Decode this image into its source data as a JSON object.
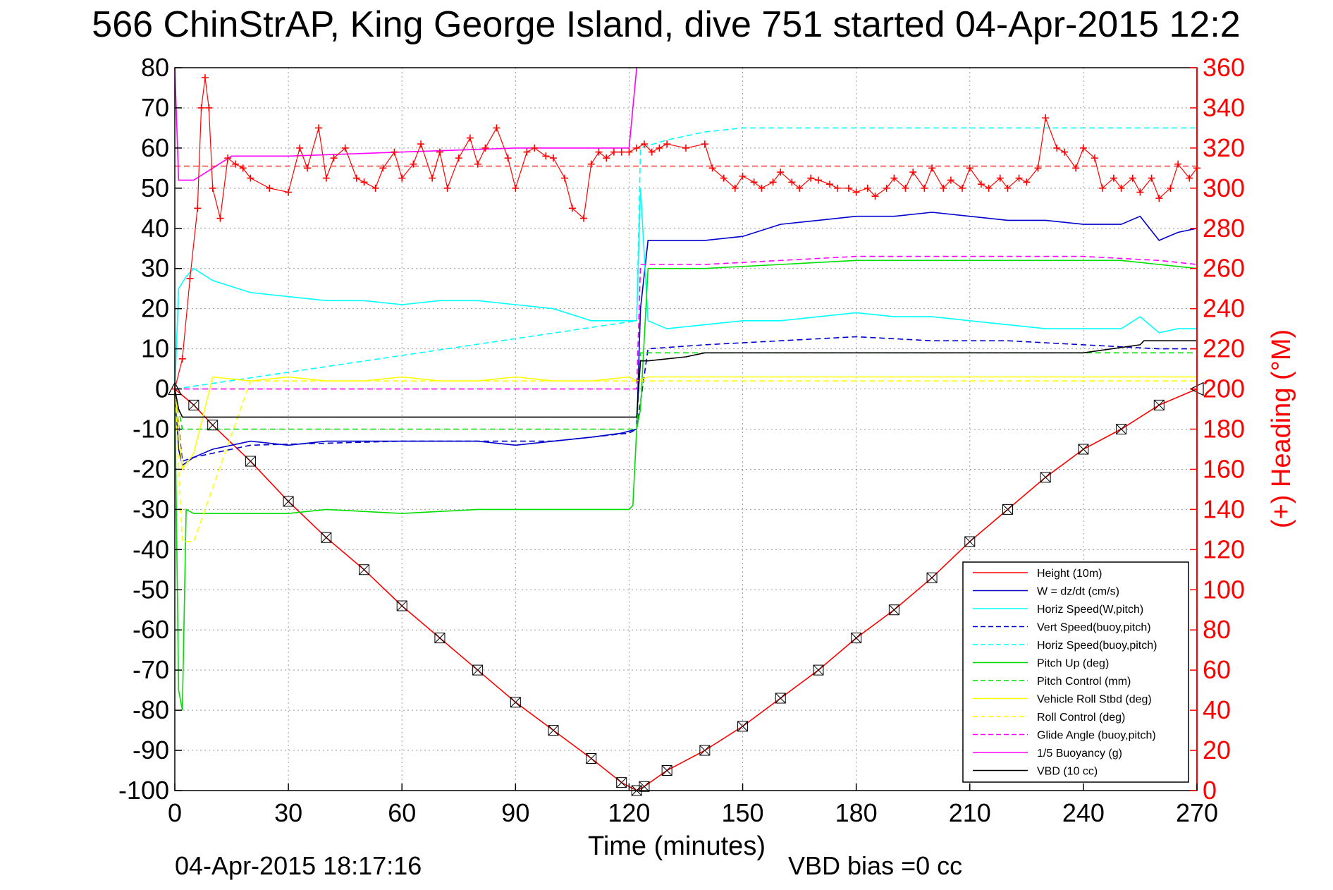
{
  "chart_data": {
    "type": "line",
    "title": "566 ChinStrAP, King George Island, dive 751 started 04-Apr-2015 12:2",
    "xlabel": "Time (minutes)",
    "ylabel_right": "(+) Heading (°M)",
    "xlim": [
      0,
      270
    ],
    "ylim": [
      -100,
      80
    ],
    "ylim_right": [
      0,
      360
    ],
    "x_ticks": [
      "0",
      "30",
      "60",
      "90",
      "120",
      "150",
      "180",
      "210",
      "240",
      "270"
    ],
    "y_ticks": [
      "80",
      "70",
      "60",
      "50",
      "40",
      "30",
      "20",
      "10",
      "0",
      "-10",
      "-20",
      "-30",
      "-40",
      "-50",
      "-60",
      "-70",
      "-80",
      "-90",
      "-100"
    ],
    "y_ticks_right": [
      "360",
      "340",
      "320",
      "300",
      "280",
      "260",
      "240",
      "220",
      "200",
      "180",
      "160",
      "140",
      "120",
      "100",
      "80",
      "60",
      "40",
      "20",
      "0"
    ],
    "grid": true,
    "legend_position": "bottom-right",
    "footer_date": "04-Apr-2015 18:17:16",
    "footer_bias": "VBD bias =0 cc",
    "colors": {
      "red": "#ff0000",
      "blue": "#0000cc",
      "cyan": "#00ffff",
      "green": "#00dd00",
      "yellow": "#ffff00",
      "magenta": "#ff00ff",
      "black": "#000000"
    },
    "series": [
      {
        "name": "Height (10m)",
        "color": "#ff0000",
        "dash": false,
        "x": [
          0,
          5,
          10,
          20,
          30,
          40,
          50,
          60,
          70,
          80,
          90,
          100,
          110,
          118,
          122,
          124,
          130,
          140,
          150,
          160,
          170,
          180,
          190,
          200,
          210,
          220,
          230,
          240,
          250,
          260,
          270
        ],
        "y": [
          0,
          -4,
          -9,
          -18,
          -28,
          -37,
          -45,
          -54,
          -62,
          -70,
          -78,
          -85,
          -92,
          -98,
          -100,
          -99,
          -95,
          -90,
          -84,
          -77,
          -70,
          -62,
          -55,
          -47,
          -38,
          -30,
          -22,
          -15,
          -10,
          -4,
          0
        ]
      },
      {
        "name": "W = dz/dt (cm/s)",
        "color": "#0000cc",
        "dash": false,
        "x": [
          0,
          1,
          2,
          5,
          10,
          20,
          30,
          40,
          50,
          60,
          70,
          80,
          90,
          100,
          110,
          118,
          122,
          123,
          125,
          130,
          140,
          150,
          160,
          170,
          180,
          190,
          200,
          210,
          220,
          230,
          240,
          250,
          255,
          260,
          265,
          270
        ],
        "y": [
          0,
          -15,
          -19,
          -17,
          -15,
          -13,
          -14,
          -13,
          -13,
          -13,
          -13,
          -13,
          -14,
          -13,
          -12,
          -11,
          -10,
          20,
          37,
          37,
          37,
          38,
          41,
          42,
          43,
          43,
          44,
          43,
          42,
          42,
          41,
          41,
          43,
          37,
          39,
          40
        ]
      },
      {
        "name": "Horiz Speed(W,pitch)",
        "color": "#00ffff",
        "dash": false,
        "x": [
          0,
          1,
          3,
          5,
          10,
          20,
          30,
          40,
          50,
          60,
          70,
          80,
          90,
          100,
          110,
          118,
          122,
          123,
          125,
          130,
          140,
          150,
          160,
          170,
          180,
          190,
          200,
          210,
          220,
          230,
          240,
          250,
          255,
          260,
          265,
          270
        ],
        "y": [
          0,
          25,
          28,
          30,
          27,
          24,
          23,
          22,
          22,
          21,
          22,
          22,
          21,
          20,
          17,
          17,
          17,
          50,
          17,
          15,
          16,
          17,
          17,
          18,
          19,
          18,
          18,
          17,
          16,
          15,
          15,
          15,
          18,
          14,
          15,
          15
        ]
      },
      {
        "name": "Vert Speed(buoy,pitch)",
        "color": "#0000cc",
        "dash": true,
        "x": [
          0,
          2,
          5,
          20,
          60,
          100,
          120,
          122,
          125,
          140,
          160,
          180,
          200,
          220,
          240,
          260,
          270
        ],
        "y": [
          0,
          -18,
          -17,
          -14,
          -13,
          -13,
          -11,
          -10,
          10,
          11,
          12,
          13,
          12,
          12,
          11,
          10,
          10
        ]
      },
      {
        "name": "Horiz Speed(buoy,pitch)",
        "color": "#00ffff",
        "dash": true,
        "x": [
          0,
          122,
          123,
          130,
          140,
          150,
          160,
          180,
          200,
          220,
          240,
          260,
          270
        ],
        "y": [
          0,
          17,
          60,
          62,
          64,
          65,
          65,
          65,
          65,
          65,
          65,
          65,
          65
        ]
      },
      {
        "name": "Pitch Up (deg)",
        "color": "#00dd00",
        "dash": false,
        "x": [
          0,
          1,
          2,
          3,
          5,
          10,
          20,
          30,
          40,
          60,
          80,
          100,
          120,
          121,
          122,
          123,
          125,
          130,
          140,
          160,
          180,
          200,
          220,
          240,
          250,
          260,
          270
        ],
        "y": [
          0,
          -75,
          -80,
          -30,
          -31,
          -31,
          -31,
          -31,
          -30,
          -31,
          -30,
          -30,
          -30,
          -29,
          -10,
          -5,
          30,
          30,
          30,
          31,
          32,
          32,
          32,
          32,
          32,
          31,
          30
        ]
      },
      {
        "name": "Pitch Control (mm)",
        "color": "#00dd00",
        "dash": true,
        "x": [
          0,
          2,
          5,
          120,
          122,
          123,
          125,
          140,
          170,
          200,
          230,
          260,
          270
        ],
        "y": [
          0,
          -10,
          -10,
          -10,
          -10,
          9,
          9,
          9,
          9,
          9,
          9,
          9,
          9
        ]
      },
      {
        "name": "Vehicle Roll Stbd (deg)",
        "color": "#ffff00",
        "dash": false,
        "x": [
          0,
          2,
          5,
          10,
          20,
          30,
          40,
          50,
          60,
          70,
          80,
          90,
          100,
          110,
          120,
          122,
          125,
          140,
          160,
          180,
          200,
          220,
          240,
          260,
          270
        ],
        "y": [
          0,
          -20,
          -16,
          3,
          2,
          3,
          2,
          2,
          3,
          2,
          2,
          3,
          2,
          2,
          3,
          2,
          3,
          3,
          3,
          3,
          3,
          3,
          3,
          3,
          3
        ]
      },
      {
        "name": "Roll Control (deg)",
        "color": "#ffff00",
        "dash": true,
        "x": [
          0,
          2,
          5,
          20,
          40,
          60,
          80,
          100,
          120,
          122,
          125,
          140,
          160,
          180,
          200,
          220,
          240,
          260,
          270
        ],
        "y": [
          0,
          -38,
          -38,
          2,
          2,
          2,
          2,
          2,
          2,
          2,
          2,
          2,
          2,
          2,
          2,
          2,
          2,
          2,
          2
        ]
      },
      {
        "name": "Glide Angle (buoy,pitch)",
        "color": "#ff00ff",
        "dash": true,
        "x": [
          0,
          5,
          120,
          122,
          123,
          125,
          140,
          160,
          180,
          200,
          220,
          240,
          260,
          270
        ],
        "y": [
          0,
          0,
          0,
          0,
          31,
          31,
          31,
          32,
          33,
          33,
          33,
          33,
          32,
          31
        ]
      },
      {
        "name": "1/5 Buoyancy (g)",
        "color": "#ff00ff",
        "dash": false,
        "x": [
          0,
          1,
          2,
          5,
          10,
          15,
          30,
          60,
          90,
          120,
          122
        ],
        "y": [
          80,
          52,
          52,
          52,
          55,
          58,
          58,
          59,
          60,
          60,
          80
        ]
      },
      {
        "name": "VBD (10 cc)",
        "color": "#000000",
        "dash": false,
        "x": [
          0,
          1,
          2,
          120,
          121,
          122,
          123,
          125,
          135,
          140,
          150,
          180,
          210,
          240,
          255,
          256,
          270
        ],
        "y": [
          0,
          -5,
          -7,
          -7,
          -7,
          -7,
          7,
          7,
          8,
          9,
          9,
          9,
          9,
          9,
          11,
          12,
          12
        ]
      }
    ],
    "heading": {
      "name": "Heading",
      "color": "#ff0000",
      "marker": "+",
      "x": [
        0,
        2,
        4,
        6,
        7,
        8,
        9,
        10,
        12,
        14,
        16,
        18,
        20,
        25,
        30,
        33,
        35,
        38,
        40,
        42,
        45,
        48,
        50,
        53,
        55,
        58,
        60,
        63,
        65,
        68,
        70,
        72,
        75,
        78,
        80,
        82,
        85,
        88,
        90,
        93,
        95,
        98,
        100,
        103,
        105,
        108,
        110,
        112,
        114,
        116,
        118,
        120,
        122,
        124,
        126,
        128,
        130,
        135,
        140,
        142,
        145,
        148,
        150,
        153,
        155,
        158,
        160,
        163,
        165,
        168,
        170,
        173,
        175,
        178,
        180,
        183,
        185,
        188,
        190,
        193,
        195,
        198,
        200,
        203,
        205,
        208,
        210,
        213,
        215,
        218,
        220,
        223,
        225,
        228,
        230,
        233,
        235,
        238,
        240,
        243,
        245,
        248,
        250,
        253,
        255,
        258,
        260,
        263,
        265,
        268,
        270
      ],
      "y": [
        200,
        215,
        255,
        290,
        340,
        355,
        340,
        300,
        285,
        315,
        312,
        310,
        305,
        300,
        298,
        320,
        310,
        330,
        305,
        315,
        320,
        305,
        303,
        300,
        310,
        318,
        305,
        312,
        322,
        305,
        318,
        300,
        315,
        325,
        312,
        320,
        330,
        315,
        300,
        318,
        320,
        316,
        315,
        305,
        290,
        285,
        312,
        318,
        315,
        318,
        318,
        318,
        320,
        322,
        318,
        320,
        322,
        320,
        322,
        310,
        305,
        300,
        306,
        303,
        300,
        303,
        308,
        303,
        300,
        305,
        304,
        302,
        300,
        300,
        298,
        300,
        296,
        300,
        305,
        300,
        308,
        300,
        310,
        300,
        304,
        300,
        310,
        302,
        300,
        305,
        300,
        305,
        303,
        310,
        335,
        320,
        318,
        310,
        320,
        315,
        300,
        305,
        300,
        305,
        298,
        305,
        295,
        300,
        312,
        305,
        310
      ]
    }
  }
}
